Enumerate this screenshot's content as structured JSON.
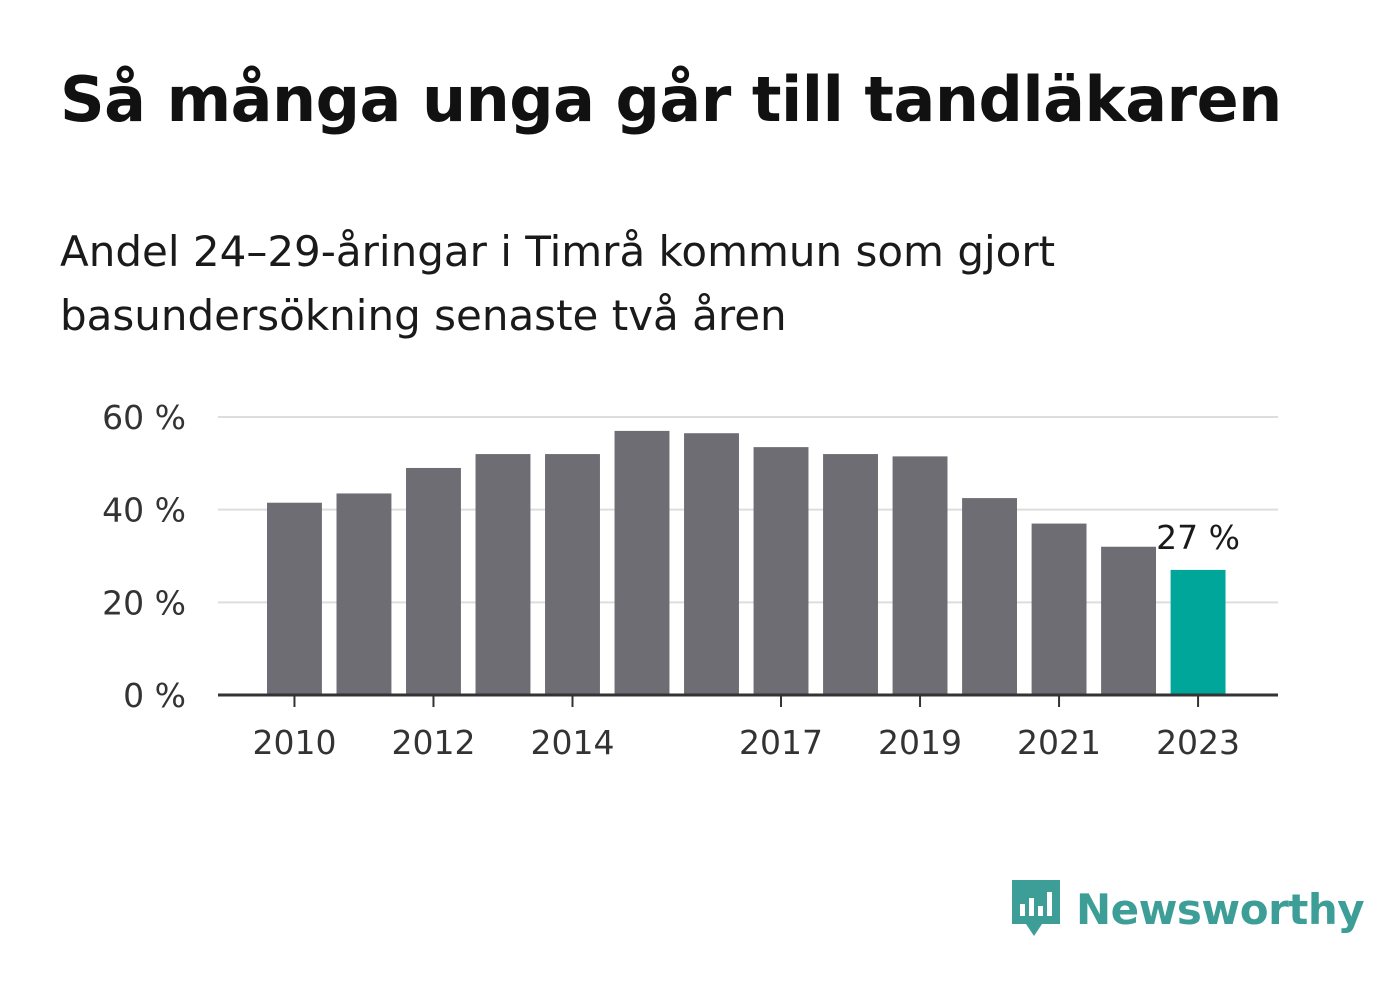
{
  "title": "Så många unga går till tandläkaren",
  "subtitle": "Andel 24–29-åringar i Timrå kommun som gjort basundersökning senaste två åren",
  "brand": {
    "name": "Newsworthy",
    "icon": "newsworthy-logo-icon",
    "color": "#3d9e98"
  },
  "colors": {
    "bar": "#6e6d74",
    "highlight": "#00a69a",
    "grid": "#dddddd",
    "axis": "#333333"
  },
  "chart_data": {
    "type": "bar",
    "categories": [
      "2010",
      "2011",
      "2012",
      "2013",
      "2014",
      "2015",
      "2016",
      "2017",
      "2018",
      "2019",
      "2020",
      "2021",
      "2022",
      "2023"
    ],
    "values": [
      41.5,
      43.5,
      49,
      52,
      52,
      57,
      56.5,
      53.5,
      52,
      51.5,
      42.5,
      37,
      32,
      27
    ],
    "x_tick_labels": [
      "2010",
      "",
      "2012",
      "",
      "2014",
      "",
      "",
      "2017",
      "",
      "2019",
      "",
      "2021",
      "",
      "2023"
    ],
    "y_ticks": [
      0,
      20,
      40,
      60
    ],
    "y_tick_labels": [
      "0 %",
      "20 %",
      "40 %",
      "60 %"
    ],
    "ylim": [
      0,
      60
    ],
    "highlight_index": 13,
    "annotation": "27 %",
    "grid": true,
    "xlabel": "",
    "ylabel": ""
  }
}
